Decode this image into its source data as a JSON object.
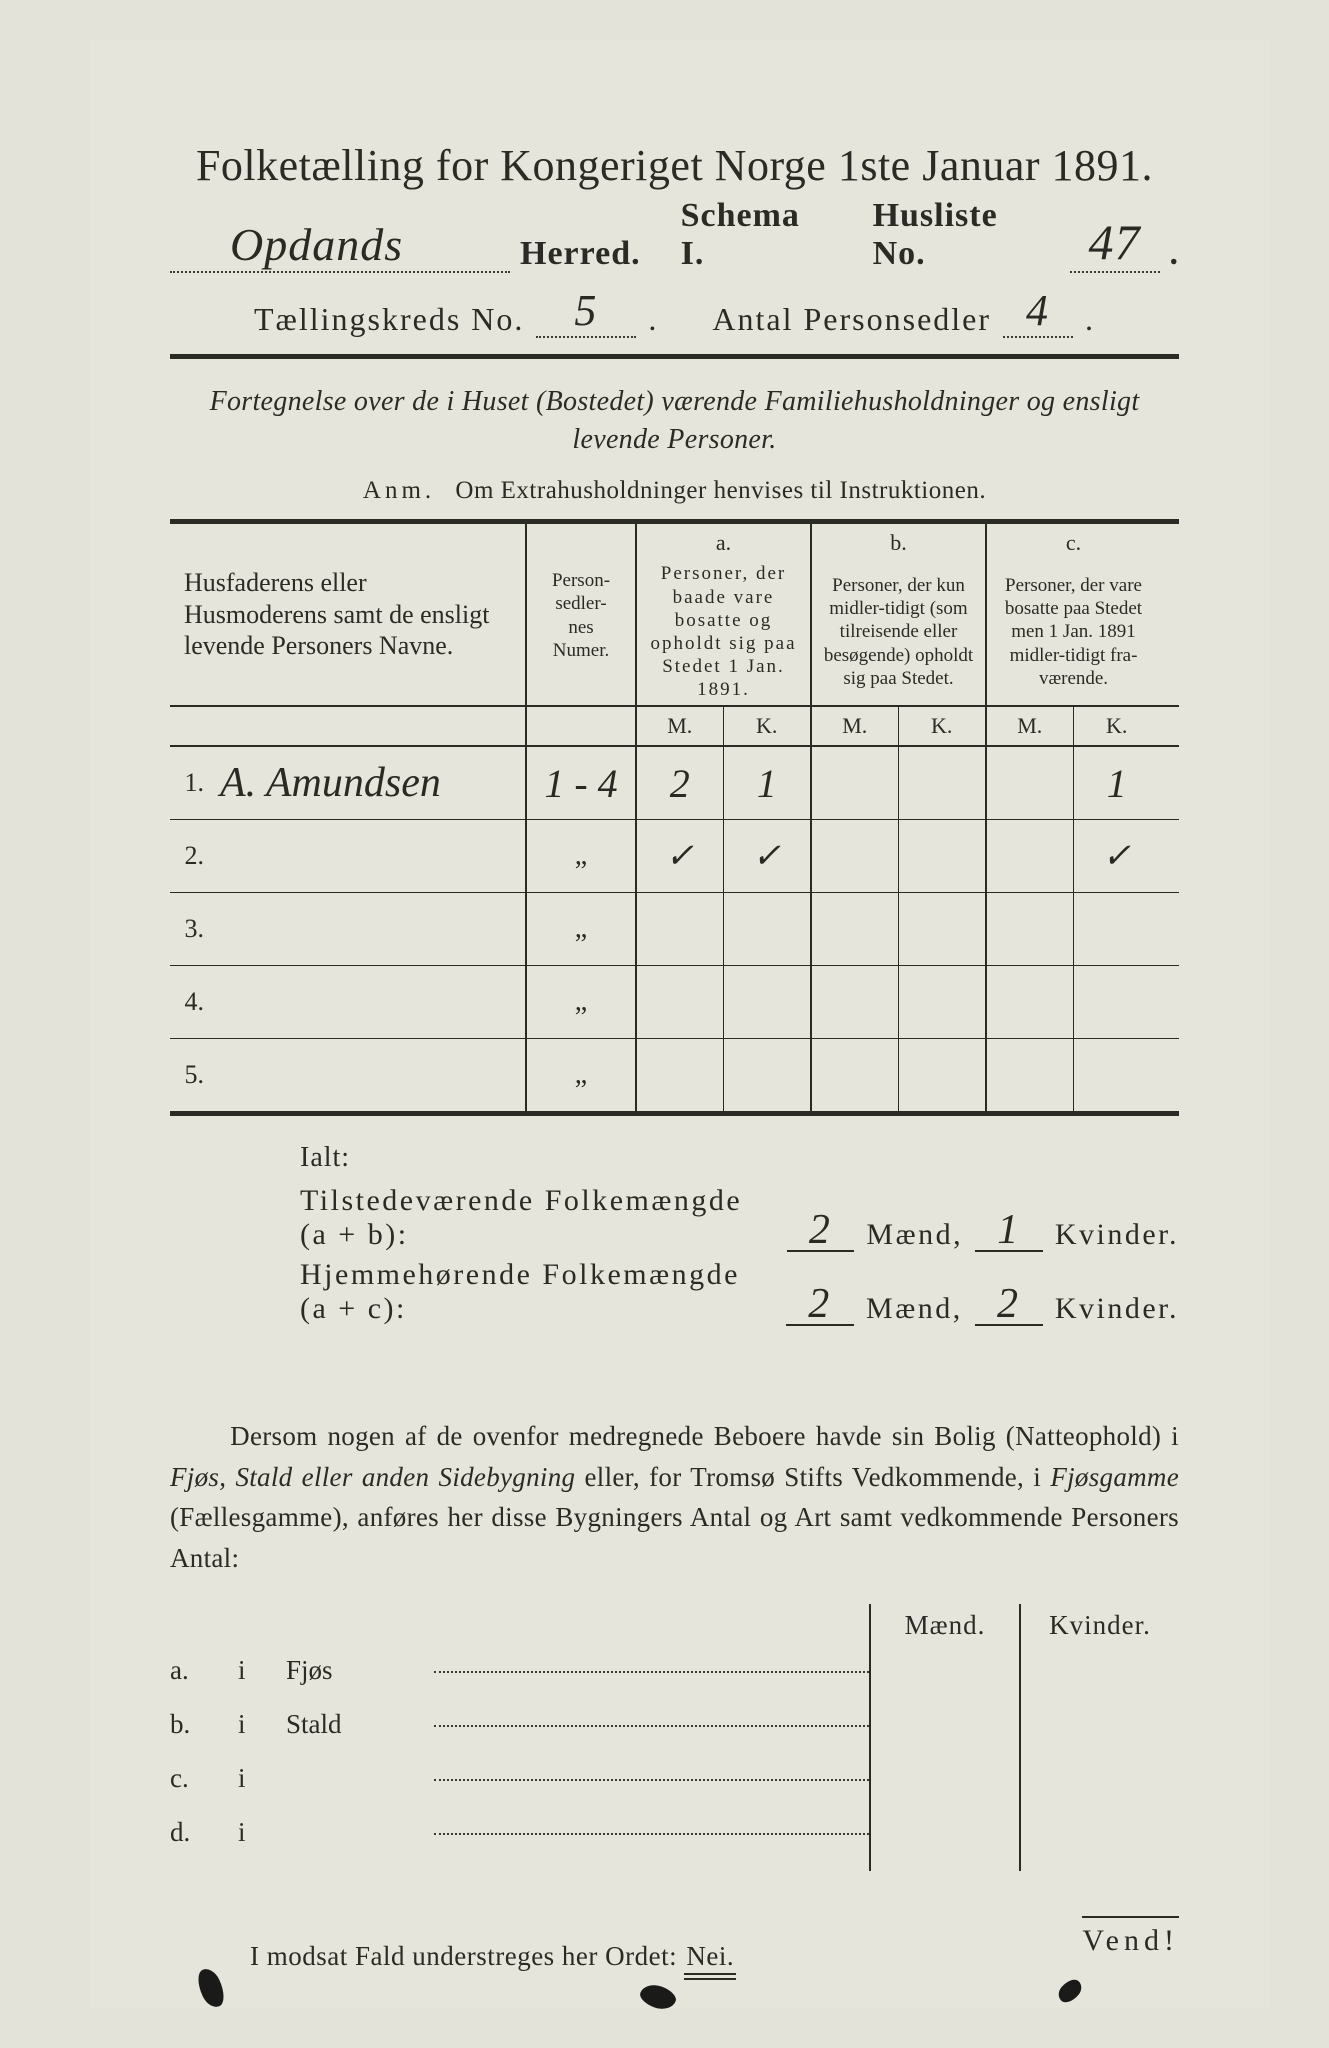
{
  "title": "Folketælling for Kongeriget Norge 1ste Januar 1891.",
  "header": {
    "herred_hw": "Opdands",
    "herred_label": "Herred.",
    "schema_label": "Schema I.",
    "husliste_label": "Husliste No.",
    "husliste_hw": "47",
    "kreds_label": "Tællingskreds No.",
    "kreds_hw": "5",
    "antal_label": "Antal Personsedler",
    "antal_hw": "4"
  },
  "subtitle": "Fortegnelse over de i Huset (Bostedet) værende Familiehusholdninger og ensligt levende Personer.",
  "anm_label": "Anm.",
  "anm_text": "Om Extrahusholdninger henvises til Instruktionen.",
  "table": {
    "col_names": "Husfaderens eller Husmoderens samt de ensligt levende Personers Navne.",
    "col_nums": "Person-\nsedler-\nnes\nNumer.",
    "col_a_tag": "a.",
    "col_a": "Personer, der baade vare bosatte og opholdt sig paa Stedet 1 Jan. 1891.",
    "col_b_tag": "b.",
    "col_b": "Personer, der kun midler-tidigt (som tilreisende eller besøgende) opholdt sig paa Stedet.",
    "col_c_tag": "c.",
    "col_c": "Personer, der vare bosatte paa Stedet men 1 Jan. 1891 midler-tidigt fra-værende.",
    "M": "M.",
    "K": "K.",
    "rows": [
      {
        "n": "1.",
        "name_hw": "A. Amundsen",
        "nums_hw": "1 - 4",
        "aM": "2",
        "aK": "1",
        "bM": "",
        "bK": "",
        "cM": "",
        "cK": "1"
      },
      {
        "n": "2.",
        "name_hw": "",
        "nums_hw": "„",
        "aM": "✓",
        "aK": "✓",
        "bM": "",
        "bK": "",
        "cM": "",
        "cK": "✓"
      },
      {
        "n": "3.",
        "name_hw": "",
        "nums_hw": "„",
        "aM": "",
        "aK": "",
        "bM": "",
        "bK": "",
        "cM": "",
        "cK": ""
      },
      {
        "n": "4.",
        "name_hw": "",
        "nums_hw": "„",
        "aM": "",
        "aK": "",
        "bM": "",
        "bK": "",
        "cM": "",
        "cK": ""
      },
      {
        "n": "5.",
        "name_hw": "",
        "nums_hw": "„",
        "aM": "",
        "aK": "",
        "bM": "",
        "bK": "",
        "cM": "",
        "cK": ""
      }
    ]
  },
  "totals": {
    "ialt": "Ialt:",
    "line1_label": "Tilstedeværende Folkemængde (a + b):",
    "line1_m": "2",
    "line1_k": "1",
    "line2_label": "Hjemmehørende Folkemængde (a + c):",
    "line2_m": "2",
    "line2_k": "2",
    "maend": "Mænd,",
    "kvinder": "Kvinder."
  },
  "para": "Dersom nogen af de ovenfor medregnede Beboere havde sin Bolig (Natteophold) i Fjøs, Stald eller anden Sidebygning eller, for Tromsø Stifts Vedkommende, i Fjøsgamme (Fællesgamme), anføres her disse Bygningers Antal og Art samt vedkommende Personers Antal:",
  "lower": {
    "maend": "Mænd.",
    "kvinder": "Kvinder.",
    "rows": [
      {
        "l": "a.",
        "i": "i",
        "name": "Fjøs"
      },
      {
        "l": "b.",
        "i": "i",
        "name": "Stald"
      },
      {
        "l": "c.",
        "i": "i",
        "name": ""
      },
      {
        "l": "d.",
        "i": "i",
        "name": ""
      }
    ]
  },
  "nei_line": "I modsat Fald understreges her Ordet:",
  "nei": "Nei.",
  "vend": "Vend!"
}
